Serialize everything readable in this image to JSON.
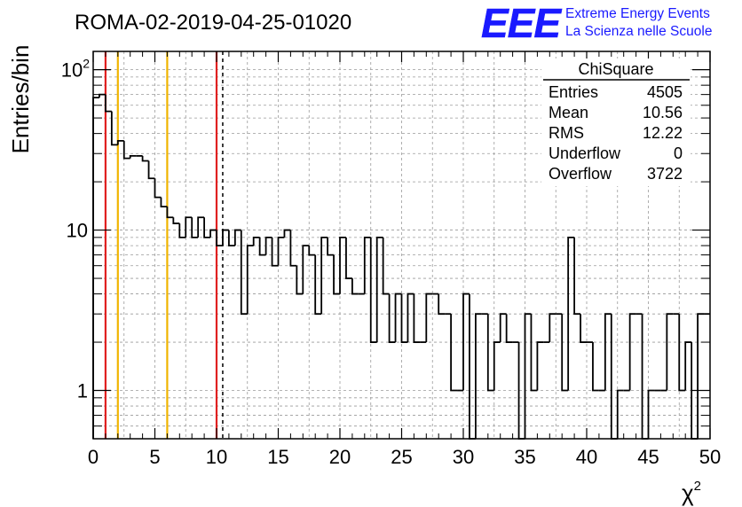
{
  "chart_data": {
    "type": "histogram",
    "title": "ROMA-02-2019-04-25-01020",
    "xlabel": "χ",
    "xlabel_superscript": "2",
    "ylabel": "Entries/bin",
    "xlim": [
      0,
      50
    ],
    "ylim": [
      0.5,
      130
    ],
    "y_scale": "log",
    "grid": true,
    "x_ticks": [
      0,
      5,
      10,
      15,
      20,
      25,
      30,
      35,
      40,
      45,
      50
    ],
    "x_tick_labels": [
      "0",
      "5",
      "10",
      "15",
      "20",
      "25",
      "30",
      "35",
      "40",
      "45",
      "50"
    ],
    "y_tick_labels": [
      {
        "value": 1,
        "base": "1",
        "exp": ""
      },
      {
        "value": 10,
        "base": "10",
        "exp": ""
      },
      {
        "value": 100,
        "base": "10",
        "exp": "2"
      }
    ],
    "bin_width": 0.5,
    "bins_x": [
      0,
      0.5,
      1,
      1.5,
      2,
      2.5,
      3,
      3.5,
      4,
      4.5,
      5,
      5.5,
      6,
      6.5,
      7,
      7.5,
      8,
      8.5,
      9,
      9.5,
      10,
      10.5,
      11,
      11.5,
      12,
      12.5,
      13,
      13.5,
      14,
      14.5,
      15,
      15.5,
      16,
      16.5,
      17,
      17.5,
      18,
      18.5,
      19,
      19.5,
      20,
      20.5,
      21,
      21.5,
      22,
      22.5,
      23,
      23.5,
      24,
      24.5,
      25,
      25.5,
      26,
      26.5,
      27,
      27.5,
      28,
      28.5,
      29,
      29.5,
      30,
      30.5,
      31,
      31.5,
      32,
      32.5,
      33,
      33.5,
      34,
      34.5,
      35,
      35.5,
      36,
      36.5,
      37,
      37.5,
      38,
      38.5,
      39,
      39.5,
      40,
      40.5,
      41,
      41.5,
      42,
      42.5,
      43,
      43.5,
      44,
      44.5,
      45,
      45.5,
      46,
      46.5,
      47,
      47.5,
      48,
      48.5,
      49,
      49.5
    ],
    "values": [
      67,
      70,
      55,
      34,
      36,
      28,
      29,
      29,
      27,
      21,
      16,
      14,
      12,
      11,
      9,
      12,
      9,
      12,
      9,
      10,
      8,
      10,
      8,
      10,
      3,
      8,
      9,
      7,
      9,
      6,
      9,
      10,
      6,
      4,
      8,
      7,
      3,
      9,
      7,
      4,
      9,
      5,
      4,
      4,
      9,
      2,
      9,
      4,
      2,
      4,
      2,
      4,
      2,
      2,
      4,
      4,
      3,
      3,
      1,
      1,
      4,
      0.5,
      3,
      3,
      1,
      2,
      3,
      2,
      2,
      0.5,
      3,
      1,
      2,
      2,
      3,
      3,
      1,
      9,
      3,
      2,
      2,
      1,
      1,
      3,
      0.5,
      1,
      1,
      3,
      3,
      0.5,
      1,
      1,
      1,
      3,
      3,
      1,
      2,
      0.5,
      3,
      3
    ],
    "cut_lines": [
      {
        "x": 1,
        "color": "#e02020",
        "style": "solid"
      },
      {
        "x": 2,
        "color": "#f0b400",
        "style": "solid"
      },
      {
        "x": 6,
        "color": "#f0b400",
        "style": "solid"
      },
      {
        "x": 10,
        "color": "#e02020",
        "style": "solid"
      },
      {
        "x": 10.5,
        "color": "#000000",
        "style": "dashed"
      }
    ],
    "stats_box": {
      "title": "ChiSquare",
      "rows": [
        {
          "label": "Entries",
          "value": "4505"
        },
        {
          "label": "Mean",
          "value": "10.56"
        },
        {
          "label": "RMS",
          "value": "12.22"
        },
        {
          "label": "Underflow",
          "value": "0"
        },
        {
          "label": "Overflow",
          "value": "3722"
        }
      ]
    },
    "logo": {
      "text": "EEE",
      "line1": "Extreme Energy Events",
      "line2": "La Scienza nelle Scuole",
      "color": "#1a1aff"
    },
    "colors": {
      "histogram": "#000000",
      "grid": "#9a9a9a",
      "red_cut": "#e02020",
      "yellow_cut": "#f0b400"
    }
  }
}
